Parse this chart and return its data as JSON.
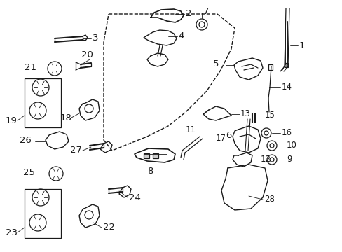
{
  "bg_color": "#ffffff",
  "fig_width": 4.89,
  "fig_height": 3.6,
  "dpi": 100,
  "line_color": "#1a1a1a",
  "label_color": "#1a1a1a",
  "font_size": 8.5,
  "lw": 0.9
}
